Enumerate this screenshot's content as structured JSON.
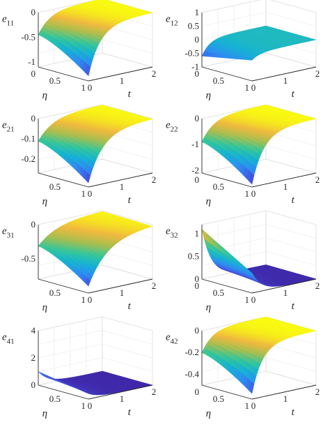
{
  "chart_data": [
    {
      "type": "surface",
      "zlabel": "e",
      "zlabel_sub": "11",
      "xlabel": "t",
      "ylabel": "η",
      "xticks": [
        "0",
        "1",
        "2"
      ],
      "yticks": [
        "0",
        "0.5",
        "1"
      ],
      "zlim": [
        -1.1,
        0
      ],
      "zticks": [
        "0",
        "-0.5",
        "-1"
      ],
      "surface": {
        "steady": 0,
        "trans": -1.0,
        "edge": "neg",
        "sag": 0.0,
        "tau": 0.18
      },
      "colors": {
        "high": "#f9fb0e",
        "low": "#3e26a8"
      },
      "grid": true
    },
    {
      "type": "surface",
      "zlabel": "e",
      "zlabel_sub": "12",
      "xlabel": "t",
      "ylabel": "η",
      "xticks": [
        "0",
        "1",
        "2"
      ],
      "yticks": [
        "0",
        "0.5",
        "1"
      ],
      "zlim": [
        -1.0,
        1.0
      ],
      "zticks": [
        "1",
        "0.5",
        "0",
        "-0.5",
        "-1"
      ],
      "surface": {
        "steady": 0,
        "trans": -0.6,
        "edge": "flat",
        "sag": 0.0,
        "tau": 0.12
      },
      "colors": {
        "high": "#f9fb0e",
        "low": "#3e26a8"
      },
      "grid": true
    },
    {
      "type": "surface",
      "zlabel": "e",
      "zlabel_sub": "21",
      "xlabel": "t",
      "ylabel": "η",
      "xticks": [
        "0",
        "1",
        "2"
      ],
      "yticks": [
        "0.5",
        "1"
      ],
      "zlim": [
        -0.27,
        0
      ],
      "zticks": [
        "0",
        "-0.1",
        "-0.2"
      ],
      "surface": {
        "steady": 0,
        "trans": -0.25,
        "edge": "neg",
        "sag": 0.0,
        "tau": 0.22
      },
      "colors": {
        "high": "#f9fb0e",
        "low": "#3e26a8"
      },
      "grid": true
    },
    {
      "type": "surface",
      "zlabel": "e",
      "zlabel_sub": "22",
      "xlabel": "t",
      "ylabel": "η",
      "xticks": [
        "0",
        "1",
        "2"
      ],
      "yticks": [
        "0",
        "0.5",
        "1"
      ],
      "zlim": [
        -2.1,
        0
      ],
      "zticks": [
        "0",
        "-1",
        "-2"
      ],
      "surface": {
        "steady": 0,
        "trans": -2.0,
        "edge": "neg",
        "sag": 0.0,
        "tau": 0.18
      },
      "colors": {
        "high": "#f9fb0e",
        "low": "#3e26a8"
      },
      "grid": true
    },
    {
      "type": "surface",
      "zlabel": "e",
      "zlabel_sub": "31",
      "xlabel": "t",
      "ylabel": "η",
      "xticks": [
        "0",
        "1",
        "2"
      ],
      "yticks": [
        "0.5",
        "1"
      ],
      "zlim": [
        -0.8,
        0
      ],
      "zticks": [
        "0",
        "-0.5"
      ],
      "surface": {
        "steady": 0,
        "trans": -0.7,
        "edge": "neg",
        "sag": 0.0,
        "tau": 0.3
      },
      "colors": {
        "high": "#f9fb0e",
        "low": "#3e26a8"
      },
      "grid": true
    },
    {
      "type": "surface",
      "zlabel": "e",
      "zlabel_sub": "32",
      "xlabel": "t",
      "ylabel": "η",
      "xticks": [
        "0",
        "1",
        "2"
      ],
      "yticks": [
        "0",
        "0.5",
        "1"
      ],
      "zlim": [
        0,
        1.2
      ],
      "zticks": [
        "1",
        "0.5",
        "0"
      ],
      "surface": {
        "steady": 0,
        "trans": 1.1,
        "edge": "flat",
        "sag": 0.7,
        "tau": 0.22
      },
      "colors": {
        "high": "#f9fb0e",
        "low": "#3e26a8"
      },
      "grid": true
    },
    {
      "type": "surface",
      "zlabel": "e",
      "zlabel_sub": "41",
      "xlabel": "t",
      "ylabel": "η",
      "xticks": [
        "0",
        "1",
        "2"
      ],
      "yticks": [
        "0.5",
        "1"
      ],
      "zlim": [
        0,
        4
      ],
      "zticks": [
        "4",
        "2",
        "0"
      ],
      "surface": {
        "steady": 0,
        "trans": 1.0,
        "edge": "flat",
        "sag": 0.3,
        "tau": 0.18
      },
      "colors": {
        "high": "#f9fb0e",
        "low": "#3e26a8"
      },
      "grid": true
    },
    {
      "type": "surface",
      "zlabel": "e",
      "zlabel_sub": "42",
      "xlabel": "t",
      "ylabel": "η",
      "xticks": [
        "0",
        "1",
        "2"
      ],
      "yticks": [
        "0",
        "0.5",
        "1"
      ],
      "zlim": [
        -0.5,
        0
      ],
      "zticks": [
        "0",
        "-0.2",
        "-0.4"
      ],
      "surface": {
        "steady": 0,
        "trans": -0.45,
        "edge": "neg",
        "sag": 0.0,
        "tau": 0.16
      },
      "colors": {
        "high": "#f9fb0e",
        "low": "#3e26a8"
      },
      "grid": true
    }
  ]
}
